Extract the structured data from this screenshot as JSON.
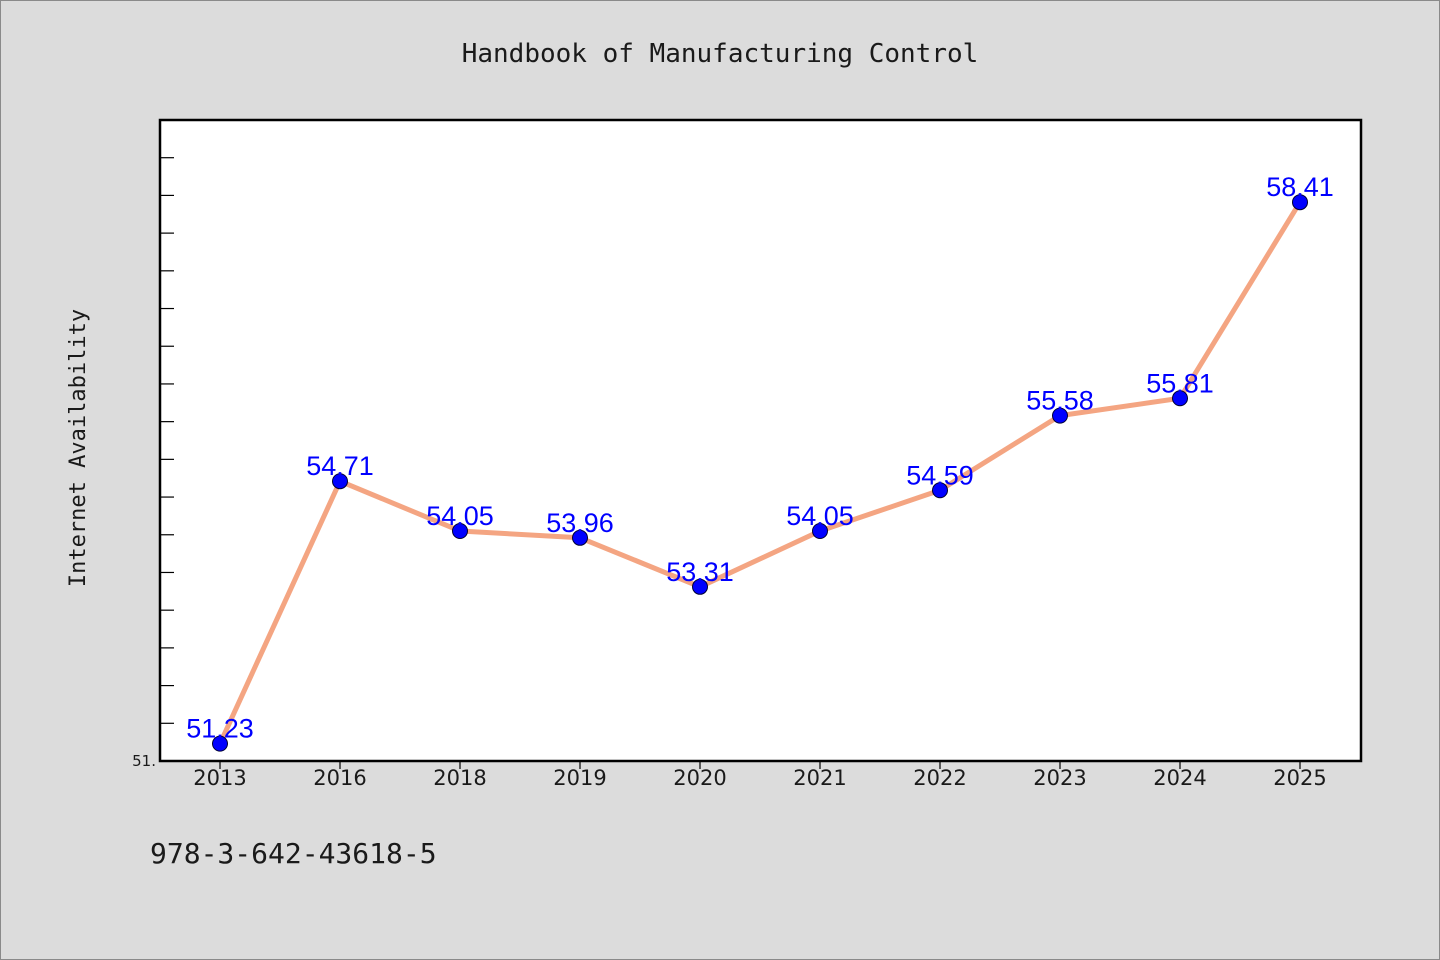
{
  "colors": {
    "background": "#dcdcdc",
    "plot_background": "#ffffff",
    "line": "#f4a582",
    "marker": "#0000ff",
    "data_label": "#0000ff",
    "text": "#1a1a1a"
  },
  "isbn": "978-3-642-43618-5",
  "chart_data": {
    "type": "line",
    "title": "Handbook of Manufacturing Control",
    "xlabel": "",
    "ylabel": "Internet Availability",
    "categories": [
      "2013",
      "2016",
      "2018",
      "2019",
      "2020",
      "2021",
      "2022",
      "2023",
      "2024",
      "2025"
    ],
    "series": [
      {
        "values": [
          51.23,
          54.71,
          54.05,
          53.96,
          53.31,
          54.05,
          54.59,
          55.58,
          55.81,
          58.41
        ],
        "labels": [
          "51.23",
          "54.71",
          "54.05",
          "53.96",
          "53.31",
          "54.05",
          "54.59",
          "55.58",
          "55.81",
          "58.41"
        ]
      }
    ],
    "y_tick_labels": [
      "51."
    ],
    "ylim": [
      51.0,
      59.5
    ],
    "y_minor_step": 0.5,
    "grid": false,
    "legend": "none"
  }
}
